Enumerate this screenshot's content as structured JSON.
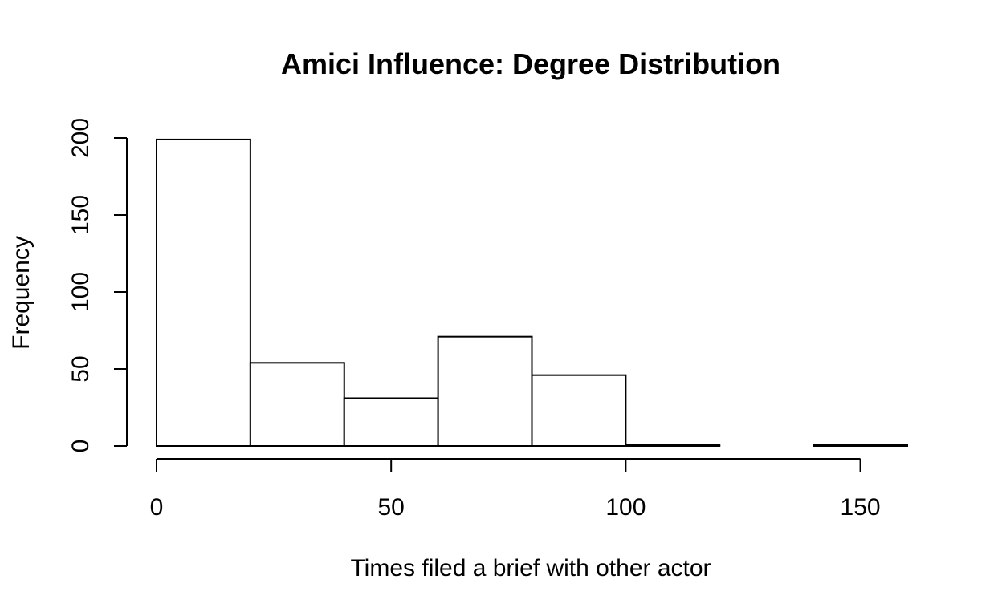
{
  "chart_data": {
    "type": "histogram",
    "title": "Amici Influence: Degree Distribution",
    "xlabel": "Times filed a brief with other actor",
    "ylabel": "Frequency",
    "bins": [
      {
        "from": 0,
        "to": 20,
        "count": 199
      },
      {
        "from": 20,
        "to": 40,
        "count": 54
      },
      {
        "from": 40,
        "to": 60,
        "count": 31
      },
      {
        "from": 60,
        "to": 80,
        "count": 71
      },
      {
        "from": 80,
        "to": 100,
        "count": 46
      },
      {
        "from": 100,
        "to": 120,
        "count": 1
      },
      {
        "from": 120,
        "to": 140,
        "count": 0
      },
      {
        "from": 140,
        "to": 160,
        "count": 1
      }
    ],
    "xticks": [
      0,
      50,
      100,
      150
    ],
    "yticks": [
      0,
      50,
      100,
      150,
      200
    ],
    "xlim": [
      0,
      160
    ],
    "ylim": [
      0,
      200
    ]
  }
}
